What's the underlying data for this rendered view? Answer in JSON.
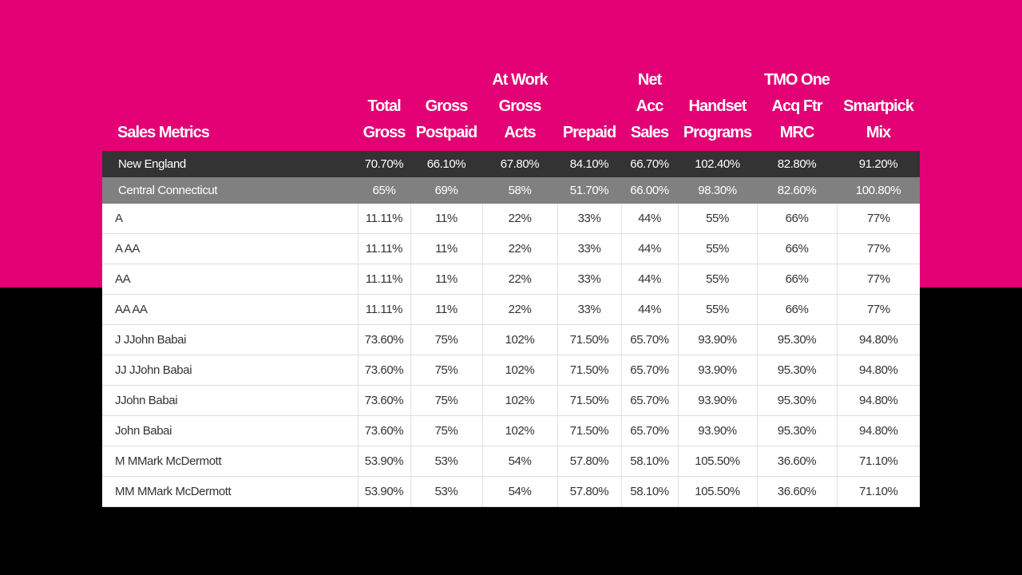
{
  "header": {
    "title": "Sales Metrics",
    "columns": [
      [
        "Total",
        "Gross"
      ],
      [
        "Gross",
        "Postpaid"
      ],
      [
        "At Work",
        "Gross",
        "Acts"
      ],
      [
        "Prepaid"
      ],
      [
        "Net",
        "Acc",
        "Sales"
      ],
      [
        "Handset",
        "Programs"
      ],
      [
        "TMO One",
        "Acq Ftr",
        "MRC"
      ],
      [
        "Smartpick",
        "Mix"
      ]
    ]
  },
  "rows": [
    {
      "type": "region",
      "name": "New England",
      "values": [
        "70.70%",
        "66.10%",
        "67.80%",
        "84.10%",
        "66.70%",
        "102.40%",
        "82.80%",
        "91.20%"
      ]
    },
    {
      "type": "district",
      "name": "Central Connecticut",
      "values": [
        "65%",
        "69%",
        "58%",
        "51.70%",
        "66.00%",
        "98.30%",
        "82.60%",
        "100.80%"
      ]
    },
    {
      "type": "store",
      "name": "A",
      "values": [
        "11.11%",
        "11%",
        "22%",
        "33%",
        "44%",
        "55%",
        "66%",
        "77%"
      ]
    },
    {
      "type": "store",
      "name": "A AA",
      "values": [
        "11.11%",
        "11%",
        "22%",
        "33%",
        "44%",
        "55%",
        "66%",
        "77%"
      ]
    },
    {
      "type": "store",
      "name": "AA",
      "values": [
        "11.11%",
        "11%",
        "22%",
        "33%",
        "44%",
        "55%",
        "66%",
        "77%"
      ]
    },
    {
      "type": "store",
      "name": "AA AA",
      "values": [
        "11.11%",
        "11%",
        "22%",
        "33%",
        "44%",
        "55%",
        "66%",
        "77%"
      ]
    },
    {
      "type": "store",
      "name": "J JJohn Babai",
      "values": [
        "73.60%",
        "75%",
        "102%",
        "71.50%",
        "65.70%",
        "93.90%",
        "95.30%",
        "94.80%"
      ]
    },
    {
      "type": "store",
      "name": "JJ JJohn Babai",
      "values": [
        "73.60%",
        "75%",
        "102%",
        "71.50%",
        "65.70%",
        "93.90%",
        "95.30%",
        "94.80%"
      ]
    },
    {
      "type": "store",
      "name": "JJohn Babai",
      "values": [
        "73.60%",
        "75%",
        "102%",
        "71.50%",
        "65.70%",
        "93.90%",
        "95.30%",
        "94.80%"
      ]
    },
    {
      "type": "store",
      "name": "John Babai",
      "values": [
        "73.60%",
        "75%",
        "102%",
        "71.50%",
        "65.70%",
        "93.90%",
        "95.30%",
        "94.80%"
      ]
    },
    {
      "type": "store",
      "name": "M MMark McDermott",
      "values": [
        "53.90%",
        "53%",
        "54%",
        "57.80%",
        "58.10%",
        "105.50%",
        "36.60%",
        "71.10%"
      ]
    },
    {
      "type": "store",
      "name": "MM MMark McDermott",
      "values": [
        "53.90%",
        "53%",
        "54%",
        "57.80%",
        "58.10%",
        "105.50%",
        "36.60%",
        "71.10%"
      ]
    }
  ],
  "colors": {
    "brand_magenta": "#e20074",
    "background": "#000000",
    "region_row": "#333333",
    "district_row": "#808080"
  }
}
